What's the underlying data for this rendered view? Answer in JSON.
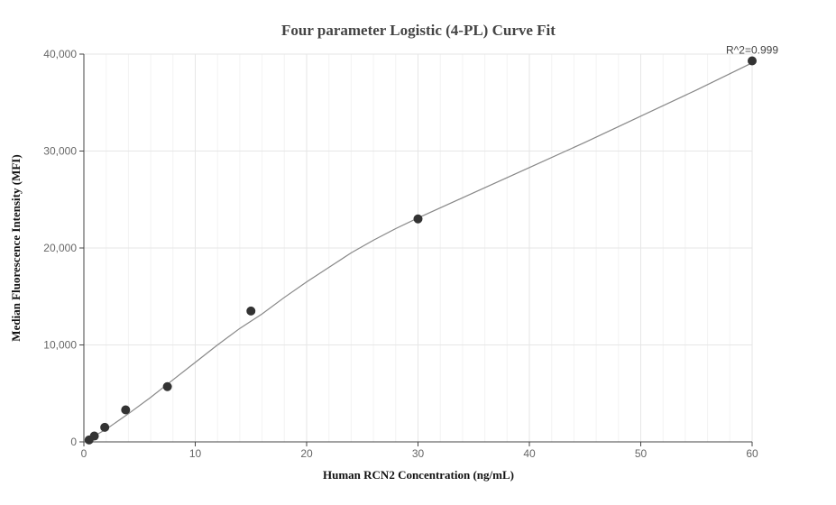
{
  "chart_data": {
    "type": "scatter",
    "title": "Four parameter Logistic (4-PL) Curve Fit",
    "xlabel": "Human RCN2 Concentration (ng/mL)",
    "ylabel": "Median Fluorescence Intensity (MFI)",
    "xlim": [
      0,
      60
    ],
    "ylim": [
      0,
      40000
    ],
    "xticks": [
      0,
      10,
      20,
      30,
      40,
      50,
      60
    ],
    "yticks": [
      0,
      10000,
      20000,
      30000,
      40000
    ],
    "xtick_labels": [
      "0",
      "10",
      "20",
      "30",
      "40",
      "50",
      "60"
    ],
    "ytick_labels": [
      "0",
      "10,000",
      "20,000",
      "30,000",
      "40,000"
    ],
    "grid": true,
    "points": [
      {
        "x": 0.469,
        "y": 200
      },
      {
        "x": 0.938,
        "y": 600
      },
      {
        "x": 1.875,
        "y": 1500
      },
      {
        "x": 3.75,
        "y": 3300
      },
      {
        "x": 7.5,
        "y": 5700
      },
      {
        "x": 15,
        "y": 13500
      },
      {
        "x": 30,
        "y": 23000
      },
      {
        "x": 60,
        "y": 39300
      }
    ],
    "fit_curve": [
      {
        "x": 0,
        "y": 0
      },
      {
        "x": 2,
        "y": 1300
      },
      {
        "x": 4,
        "y": 2900
      },
      {
        "x": 6,
        "y": 4600
      },
      {
        "x": 8,
        "y": 6400
      },
      {
        "x": 10,
        "y": 8200
      },
      {
        "x": 12,
        "y": 10000
      },
      {
        "x": 14,
        "y": 11700
      },
      {
        "x": 16,
        "y": 13200
      },
      {
        "x": 18,
        "y": 14900
      },
      {
        "x": 20,
        "y": 16500
      },
      {
        "x": 22,
        "y": 18000
      },
      {
        "x": 24,
        "y": 19500
      },
      {
        "x": 26,
        "y": 20800
      },
      {
        "x": 28,
        "y": 22000
      },
      {
        "x": 30,
        "y": 23100
      },
      {
        "x": 35,
        "y": 25700
      },
      {
        "x": 40,
        "y": 28300
      },
      {
        "x": 45,
        "y": 30900
      },
      {
        "x": 50,
        "y": 33600
      },
      {
        "x": 55,
        "y": 36300
      },
      {
        "x": 60,
        "y": 39100
      }
    ],
    "annotation": "R^2=0.999"
  }
}
